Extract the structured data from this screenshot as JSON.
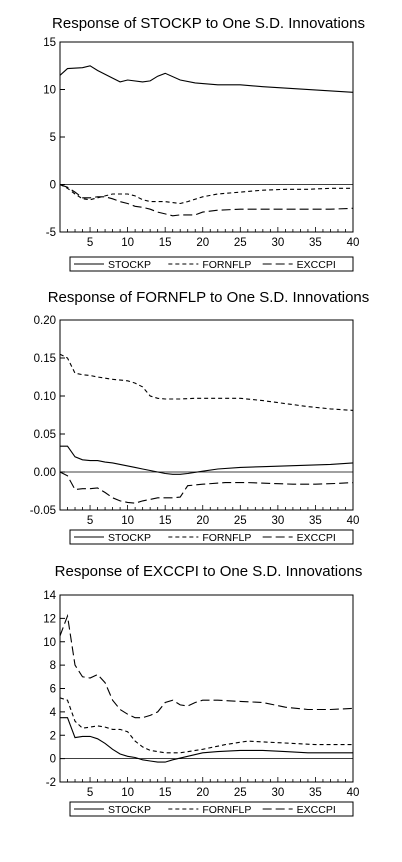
{
  "chart_data": [
    {
      "type": "line",
      "title": "Response of STOCKP to One S.D. Innovations",
      "xlabel": "",
      "ylabel": "",
      "xlim": [
        1,
        40
      ],
      "ylim": [
        -5,
        15
      ],
      "xticks": [
        5,
        10,
        15,
        20,
        25,
        30,
        35,
        40
      ],
      "yticks": [
        15,
        10,
        5,
        0,
        -5
      ],
      "ytick_labels": [
        "15",
        "10",
        "5",
        "0",
        "-5"
      ],
      "legend": "bottom",
      "series": [
        {
          "name": "STOCKP",
          "dash": "solid",
          "x": [
            1,
            2,
            4,
            5,
            6,
            8,
            9,
            10,
            12,
            13,
            14,
            15,
            17,
            19,
            22,
            25,
            28,
            32,
            36,
            40
          ],
          "y": [
            11.5,
            12.2,
            12.3,
            12.5,
            12.0,
            11.2,
            10.8,
            11.0,
            10.8,
            10.9,
            11.4,
            11.7,
            11.0,
            10.7,
            10.5,
            10.5,
            10.3,
            10.1,
            9.9,
            9.7
          ]
        },
        {
          "name": "FORNFLP",
          "dash": "short",
          "x": [
            1,
            2,
            3,
            4,
            5,
            6,
            7,
            8,
            9,
            10,
            11,
            12,
            13,
            14,
            15,
            16,
            17,
            18,
            20,
            22,
            25,
            28,
            31,
            34,
            37,
            40
          ],
          "y": [
            0.0,
            -0.4,
            -1.0,
            -1.5,
            -1.6,
            -1.4,
            -1.2,
            -1.0,
            -1.0,
            -1.0,
            -1.2,
            -1.6,
            -1.8,
            -1.8,
            -1.8,
            -1.9,
            -2.0,
            -1.8,
            -1.3,
            -1.0,
            -0.8,
            -0.6,
            -0.5,
            -0.5,
            -0.4,
            -0.4
          ]
        },
        {
          "name": "EXCCPI",
          "dash": "long",
          "x": [
            1,
            2,
            3,
            4,
            5,
            6,
            7,
            8,
            9,
            10,
            11,
            12,
            13,
            14,
            15,
            16,
            17,
            18,
            19,
            20,
            22,
            25,
            28,
            31,
            34,
            37,
            40
          ],
          "y": [
            0.0,
            -0.3,
            -0.8,
            -1.4,
            -1.4,
            -1.3,
            -1.3,
            -1.5,
            -1.8,
            -2.0,
            -2.3,
            -2.4,
            -2.6,
            -2.9,
            -3.1,
            -3.3,
            -3.2,
            -3.2,
            -3.2,
            -2.9,
            -2.7,
            -2.6,
            -2.6,
            -2.6,
            -2.6,
            -2.6,
            -2.5
          ]
        }
      ]
    },
    {
      "type": "line",
      "title": "Response of FORNFLP to One S.D. Innovations",
      "xlabel": "",
      "ylabel": "",
      "xlim": [
        1,
        40
      ],
      "ylim": [
        -0.05,
        0.2
      ],
      "xticks": [
        5,
        10,
        15,
        20,
        25,
        30,
        35,
        40
      ],
      "yticks": [
        0.2,
        0.15,
        0.1,
        0.05,
        0.0,
        -0.05
      ],
      "ytick_labels": [
        "0.20",
        "0.15",
        "0.10",
        "0.05",
        "0.00",
        "-0.05"
      ],
      "legend": "bottom",
      "series": [
        {
          "name": "STOCKP",
          "dash": "solid",
          "x": [
            1,
            2,
            3,
            4,
            5,
            6,
            7,
            8,
            9,
            10,
            11,
            12,
            13,
            14,
            15,
            16,
            17,
            18,
            20,
            22,
            25,
            28,
            31,
            34,
            37,
            40
          ],
          "y": [
            0.034,
            0.034,
            0.02,
            0.016,
            0.015,
            0.015,
            0.013,
            0.012,
            0.01,
            0.008,
            0.006,
            0.004,
            0.002,
            0.0,
            -0.002,
            -0.003,
            -0.003,
            -0.002,
            0.001,
            0.004,
            0.006,
            0.007,
            0.008,
            0.009,
            0.01,
            0.012
          ]
        },
        {
          "name": "FORNFLP",
          "dash": "short",
          "x": [
            1,
            2,
            3,
            4,
            5,
            6,
            8,
            10,
            11,
            12,
            13,
            14,
            15,
            17,
            19,
            22,
            25,
            28,
            31,
            34,
            37,
            40
          ],
          "y": [
            0.155,
            0.15,
            0.13,
            0.128,
            0.127,
            0.125,
            0.122,
            0.12,
            0.117,
            0.112,
            0.1,
            0.097,
            0.096,
            0.096,
            0.097,
            0.097,
            0.097,
            0.094,
            0.09,
            0.086,
            0.083,
            0.081
          ]
        },
        {
          "name": "EXCCPI",
          "dash": "long",
          "x": [
            1,
            2,
            3,
            4,
            5,
            6,
            7,
            8,
            9,
            10,
            11,
            12,
            13,
            14,
            15,
            16,
            17,
            18,
            20,
            23,
            26,
            29,
            32,
            35,
            38,
            40
          ],
          "y": [
            0.0,
            -0.005,
            -0.023,
            -0.022,
            -0.022,
            -0.021,
            -0.027,
            -0.034,
            -0.038,
            -0.04,
            -0.041,
            -0.038,
            -0.036,
            -0.034,
            -0.034,
            -0.034,
            -0.033,
            -0.018,
            -0.016,
            -0.014,
            -0.014,
            -0.015,
            -0.016,
            -0.016,
            -0.015,
            -0.014
          ]
        }
      ]
    },
    {
      "type": "line",
      "title": "Response of EXCCPI to One S.D. Innovations",
      "xlabel": "",
      "ylabel": "",
      "xlim": [
        1,
        40
      ],
      "ylim": [
        -2,
        14
      ],
      "xticks": [
        5,
        10,
        15,
        20,
        25,
        30,
        35,
        40
      ],
      "yticks": [
        14,
        12,
        10,
        8,
        6,
        4,
        2,
        0,
        -2
      ],
      "ytick_labels": [
        "14",
        "12",
        "10",
        "8",
        "6",
        "4",
        "2",
        "0",
        "-2"
      ],
      "legend": "bottom",
      "series": [
        {
          "name": "STOCKP",
          "dash": "solid",
          "x": [
            1,
            2,
            3,
            4,
            5,
            6,
            7,
            8,
            9,
            10,
            11,
            12,
            13,
            14,
            15,
            16,
            18,
            20,
            22,
            25,
            28,
            31,
            34,
            37,
            40
          ],
          "y": [
            3.5,
            3.5,
            1.8,
            1.9,
            1.9,
            1.7,
            1.3,
            0.8,
            0.4,
            0.2,
            0.1,
            -0.1,
            -0.2,
            -0.3,
            -0.3,
            -0.1,
            0.2,
            0.5,
            0.6,
            0.7,
            0.7,
            0.6,
            0.5,
            0.5,
            0.5
          ]
        },
        {
          "name": "FORNFLP",
          "dash": "short",
          "x": [
            1,
            2,
            3,
            4,
            5,
            6,
            7,
            8,
            9,
            10,
            11,
            12,
            13,
            14,
            15,
            17,
            20,
            23,
            26,
            29,
            32,
            35,
            38,
            40
          ],
          "y": [
            5.2,
            5.0,
            3.2,
            2.6,
            2.7,
            2.8,
            2.7,
            2.5,
            2.5,
            2.3,
            1.5,
            1.0,
            0.7,
            0.6,
            0.5,
            0.5,
            0.8,
            1.2,
            1.5,
            1.4,
            1.3,
            1.2,
            1.2,
            1.2
          ]
        },
        {
          "name": "EXCCPI",
          "dash": "long",
          "x": [
            1,
            2,
            3,
            4,
            5,
            6,
            7,
            8,
            9,
            10,
            11,
            12,
            13,
            14,
            15,
            16,
            17,
            18,
            19,
            20,
            22,
            25,
            28,
            31,
            34,
            37,
            40
          ],
          "y": [
            10.5,
            12.2,
            8.0,
            7.0,
            6.9,
            7.2,
            6.5,
            5.0,
            4.2,
            3.8,
            3.5,
            3.5,
            3.7,
            4.0,
            4.8,
            5.0,
            4.6,
            4.5,
            4.8,
            5.0,
            5.0,
            4.9,
            4.8,
            4.4,
            4.2,
            4.2,
            4.3
          ]
        }
      ]
    }
  ]
}
